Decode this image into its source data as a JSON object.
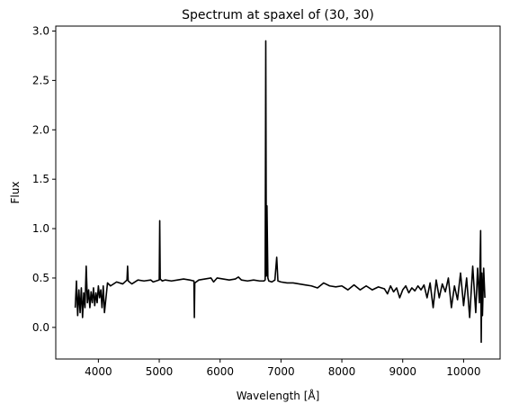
{
  "chart_data": {
    "type": "line",
    "title": "Spectrum at spaxel of (30, 30)",
    "xlabel": "Wavelength [Å]",
    "ylabel": "Flux",
    "xlim": [
      3300,
      10600
    ],
    "ylim": [
      -0.32,
      3.05
    ],
    "x_ticks": [
      4000,
      5000,
      6000,
      7000,
      8000,
      9000,
      10000
    ],
    "x_tick_labels": [
      "4000",
      "5000",
      "6000",
      "7000",
      "8000",
      "9000",
      "10000"
    ],
    "y_ticks": [
      0.0,
      0.5,
      1.0,
      1.5,
      2.0,
      2.5,
      3.0
    ],
    "y_tick_labels": [
      "0.0",
      "0.5",
      "1.0",
      "1.5",
      "2.0",
      "2.5",
      "3.0"
    ],
    "grid": false,
    "line_color": "#000000",
    "series": [
      {
        "x": [
          3620,
          3640,
          3660,
          3680,
          3700,
          3720,
          3740,
          3760,
          3780,
          3800,
          3820,
          3840,
          3860,
          3880,
          3900,
          3920,
          3940,
          3960,
          3980,
          4000,
          4020,
          4040,
          4060,
          4080,
          4100,
          4150,
          4200,
          4300,
          4400,
          4470,
          4480,
          4490,
          4550,
          4650,
          4750,
          4860,
          4900,
          4950,
          5000,
          5008,
          5016,
          5050,
          5100,
          5200,
          5300,
          5400,
          5500,
          5570,
          5577,
          5584,
          5650,
          5750,
          5850,
          5893,
          5950,
          6050,
          6150,
          6250,
          6300,
          6350,
          6450,
          6550,
          6650,
          6720,
          6740,
          6750,
          6760,
          6770,
          6785,
          6800,
          6850,
          6900,
          6930,
          6950,
          7000,
          7100,
          7200,
          7300,
          7400,
          7500,
          7600,
          7700,
          7800,
          7900,
          8000,
          8100,
          8200,
          8300,
          8400,
          8500,
          8600,
          8700,
          8750,
          8800,
          8850,
          8900,
          8950,
          9000,
          9050,
          9100,
          9150,
          9200,
          9250,
          9300,
          9350,
          9400,
          9450,
          9500,
          9550,
          9600,
          9650,
          9700,
          9750,
          9800,
          9850,
          9900,
          9950,
          10000,
          10050,
          10100,
          10150,
          10200,
          10230,
          10260,
          10280,
          10290,
          10300,
          10310,
          10330,
          10350
        ],
        "y": [
          0.2,
          0.47,
          0.12,
          0.38,
          0.15,
          0.4,
          0.1,
          0.35,
          0.2,
          0.62,
          0.25,
          0.38,
          0.2,
          0.36,
          0.25,
          0.4,
          0.22,
          0.35,
          0.25,
          0.42,
          0.3,
          0.38,
          0.2,
          0.42,
          0.15,
          0.45,
          0.42,
          0.46,
          0.44,
          0.48,
          0.62,
          0.47,
          0.44,
          0.48,
          0.47,
          0.48,
          0.46,
          0.47,
          0.48,
          1.08,
          0.49,
          0.47,
          0.48,
          0.47,
          0.48,
          0.49,
          0.48,
          0.47,
          0.1,
          0.45,
          0.48,
          0.49,
          0.5,
          0.46,
          0.5,
          0.49,
          0.48,
          0.49,
          0.51,
          0.48,
          0.47,
          0.48,
          0.47,
          0.47,
          0.48,
          2.9,
          0.52,
          1.23,
          0.5,
          0.47,
          0.46,
          0.48,
          0.71,
          0.47,
          0.46,
          0.45,
          0.45,
          0.44,
          0.43,
          0.42,
          0.4,
          0.45,
          0.42,
          0.41,
          0.42,
          0.38,
          0.43,
          0.38,
          0.42,
          0.38,
          0.41,
          0.39,
          0.34,
          0.42,
          0.36,
          0.4,
          0.3,
          0.38,
          0.42,
          0.35,
          0.4,
          0.37,
          0.42,
          0.38,
          0.43,
          0.3,
          0.45,
          0.2,
          0.48,
          0.3,
          0.44,
          0.36,
          0.5,
          0.2,
          0.42,
          0.28,
          0.55,
          0.22,
          0.5,
          0.1,
          0.62,
          0.15,
          0.6,
          0.25,
          0.98,
          -0.15,
          0.55,
          0.12,
          0.6,
          0.3
        ]
      }
    ]
  }
}
